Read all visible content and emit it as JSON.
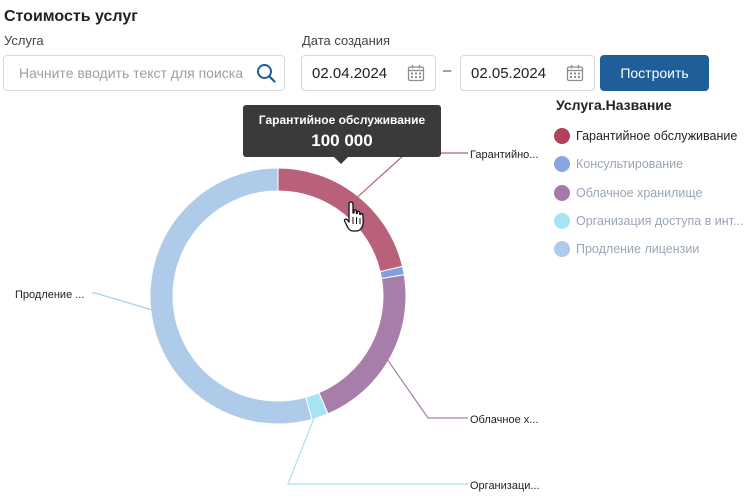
{
  "page": {
    "title": "Стоимость услуг"
  },
  "filters": {
    "service_label": "Услуга",
    "service_placeholder": "Начните вводить текст для поиска",
    "date_label": "Дата создания",
    "date_from": "02.04.2024",
    "date_separator": "–",
    "date_to": "02.05.2024",
    "build_button": "Построить"
  },
  "legend": {
    "title": "Услуга.Название",
    "items": [
      {
        "label": "Гарантийное обслуживание",
        "color": "#b5405e",
        "active": true
      },
      {
        "label": "Консультирование",
        "color": "#8aa6e0",
        "active": false
      },
      {
        "label": "Облачное хранилище",
        "color": "#a77aaa",
        "active": false
      },
      {
        "label": "Организация доступа в инт...",
        "color": "#a8e3f4",
        "active": false
      },
      {
        "label": "Продление лицензии",
        "color": "#adcbea",
        "active": false
      }
    ]
  },
  "tooltip": {
    "name": "Гарантийное обслуживание",
    "value": "100 000"
  },
  "icons": {
    "search": "search-icon",
    "calendar": "calendar-icon",
    "cursor": "hand-pointer-icon"
  },
  "chart_data": {
    "type": "pie",
    "variant": "donut",
    "legend_title": "Услуга.Название",
    "legend_position": "right",
    "slices": [
      {
        "label": "Гарантийное обслуживание",
        "callout": "Гарантийно...",
        "value": 100000,
        "color": "#b9607a",
        "highlighted": true
      },
      {
        "label": "Консультирование",
        "callout": "",
        "value": 5000,
        "color": "#7f9fe0",
        "highlighted": false
      },
      {
        "label": "Облачное хранилище",
        "callout": "Облачное х...",
        "value": 100000,
        "color": "#a77ea9",
        "highlighted": false
      },
      {
        "label": "Организация доступа в интернет",
        "callout": "Организаци...",
        "value": 10000,
        "color": "#a8e3f4",
        "highlighted": false
      },
      {
        "label": "Продление лицензии",
        "callout": "Продление ...",
        "value": 255000,
        "color": "#aecbe9",
        "highlighted": false
      }
    ]
  }
}
